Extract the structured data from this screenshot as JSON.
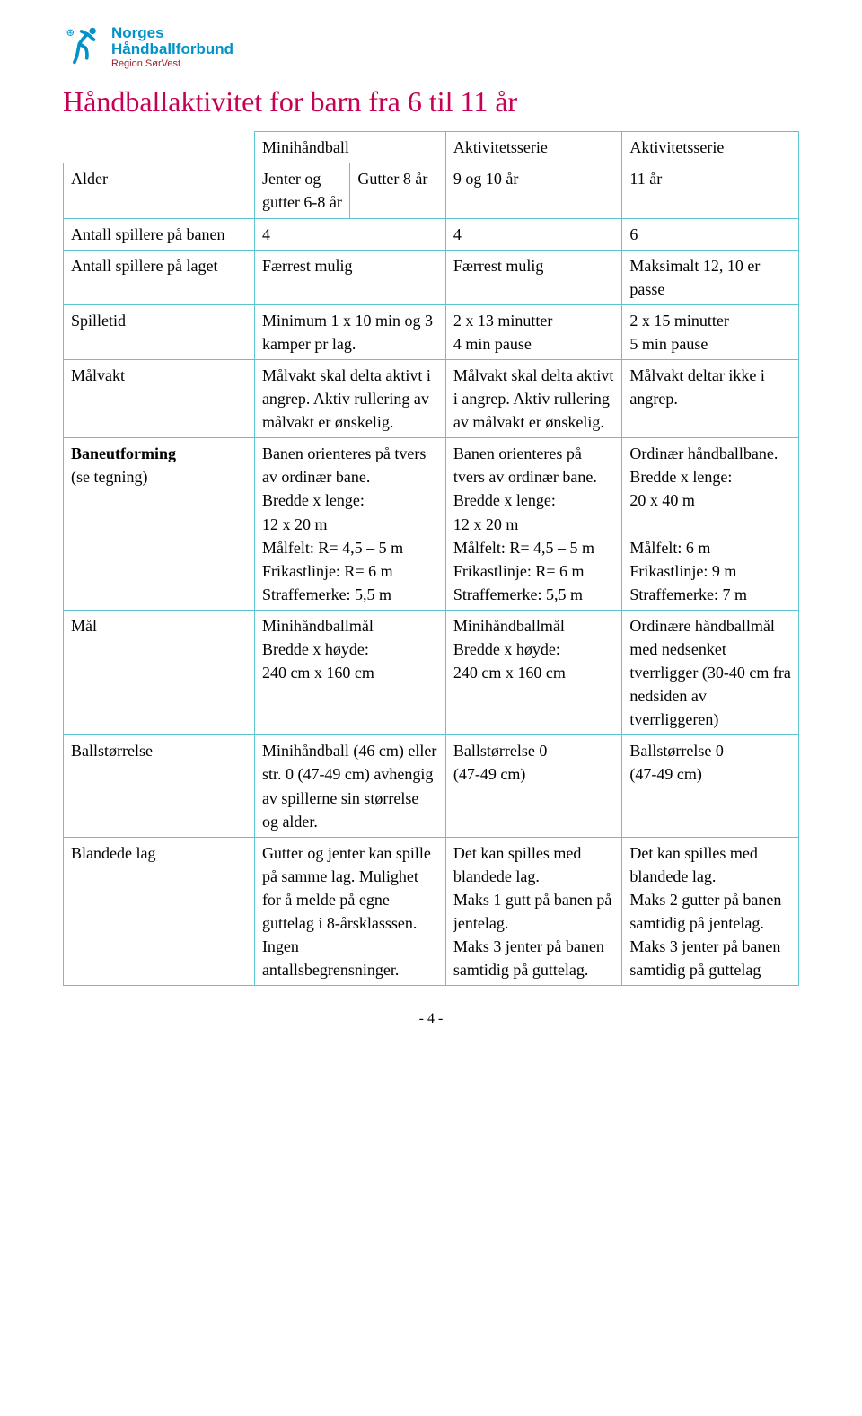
{
  "logo": {
    "line1": "Norges",
    "line2": "Håndballforbund",
    "line3": "Region SørVest",
    "icon_color": "#0092c8"
  },
  "title": "Håndballaktivitet for barn fra 6 til 11 år",
  "header": {
    "col_b": "Minihåndball",
    "col_c": "Aktivitetsserie",
    "col_d": "Aktivitetsserie"
  },
  "rows": {
    "alder": {
      "label": "Alder",
      "b1": "Jenter og gutter 6-8 år",
      "b2": "Gutter 8 år",
      "c": "9 og 10 år",
      "d": "11 år"
    },
    "spillere_banen": {
      "label": "Antall spillere på banen",
      "b": "4",
      "c": "4",
      "d": "6"
    },
    "spillere_laget": {
      "label": "Antall spillere på laget",
      "b": "Færrest mulig",
      "c": "Færrest mulig",
      "d": "Maksimalt 12, 10 er passe"
    },
    "spilletid": {
      "label": "Spilletid",
      "b": "Minimum 1 x 10 min og 3 kamper pr lag.",
      "c": "2 x 13 minutter\n4 min pause",
      "d": "2 x 15 minutter\n5 min pause"
    },
    "malvakt": {
      "label": "Målvakt",
      "b": "Målvakt skal delta aktivt i angrep. Aktiv rullering av målvakt er ønskelig.",
      "c": "Målvakt skal delta aktivt i angrep. Aktiv rullering av målvakt er ønskelig.",
      "d": "Målvakt deltar ikke i angrep."
    },
    "baneutforming": {
      "label": "Baneutforming\n(se tegning)",
      "b": "Banen orienteres på tvers av ordinær bane.\nBredde x lenge:\n12 x 20 m\nMålfelt: R= 4,5 – 5 m\nFrikastlinje: R= 6 m\nStraffemerke: 5,5 m",
      "c": "Banen orienteres på tvers av ordinær bane.\nBredde x lenge:\n12 x 20 m\nMålfelt: R= 4,5 – 5 m\nFrikastlinje: R= 6 m\nStraffemerke: 5,5 m",
      "d": "Ordinær håndballbane.\nBredde x lenge:\n20 x 40 m\n\nMålfelt: 6 m\nFrikastlinje: 9 m\nStraffemerke: 7 m"
    },
    "mal": {
      "label": "Mål",
      "b": "Minihåndballmål\nBredde x høyde:\n240 cm x 160 cm",
      "c": "Minihåndballmål\nBredde x høyde:\n240 cm x 160 cm",
      "d": "Ordinære håndballmål med nedsenket tverrligger (30-40 cm fra nedsiden av tverrliggeren)"
    },
    "ballstorrelse": {
      "label": "Ballstørrelse",
      "b": "Minihåndball (46 cm) eller str. 0 (47-49 cm) avhengig av spillerne sin størrelse og alder.",
      "c": "Ballstørrelse 0\n(47-49 cm)",
      "d": "Ballstørrelse 0\n(47-49 cm)"
    },
    "blandede": {
      "label": "Blandede lag",
      "b": "Gutter og jenter kan spille på samme lag. Mulighet for å melde på egne guttelag i 8-årsklasssen.\nIngen antallsbegrensninger.",
      "c": "Det kan spilles med blandede lag.\nMaks 1 gutt på banen på jentelag.\nMaks 3 jenter på banen samtidig på guttelag.",
      "d": "Det kan spilles med blandede lag.\nMaks 2 gutter på banen samtidig på jentelag. Maks 3 jenter på banen samtidig på guttelag"
    }
  },
  "page_number": "- 4 -"
}
